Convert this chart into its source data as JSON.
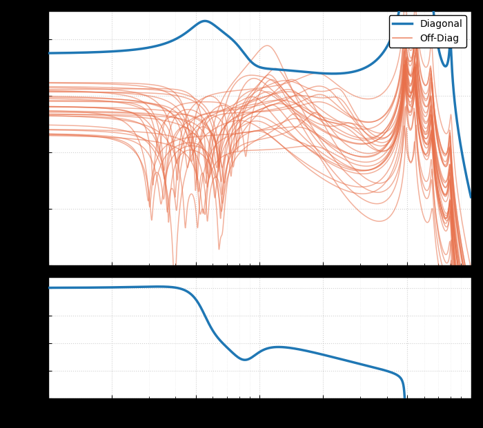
{
  "fig_width": 7.0,
  "fig_height": 6.21,
  "dpi": 100,
  "background_color": "#000000",
  "axes_facecolor": "#ffffff",
  "grid_color": "#b0b0b0",
  "grid_alpha": 0.6,
  "freq_min": 10,
  "freq_max": 1000,
  "diag_color": "#1f77b4",
  "offdiag_color": "#e8704a",
  "offdiag_alpha": 0.55,
  "diag_linewidth": 2.5,
  "offdiag_linewidth": 1.1,
  "mag_ylim": [
    -80,
    10
  ],
  "phase_ylim": [
    -200,
    20
  ],
  "resonance_freqs": [
    490,
    545,
    650,
    800
  ],
  "resonance_zetas": [
    0.008,
    0.008,
    0.01,
    0.008
  ],
  "n_offdiag": 30,
  "legend_fontsize": 10,
  "tick_labelsize": 9
}
